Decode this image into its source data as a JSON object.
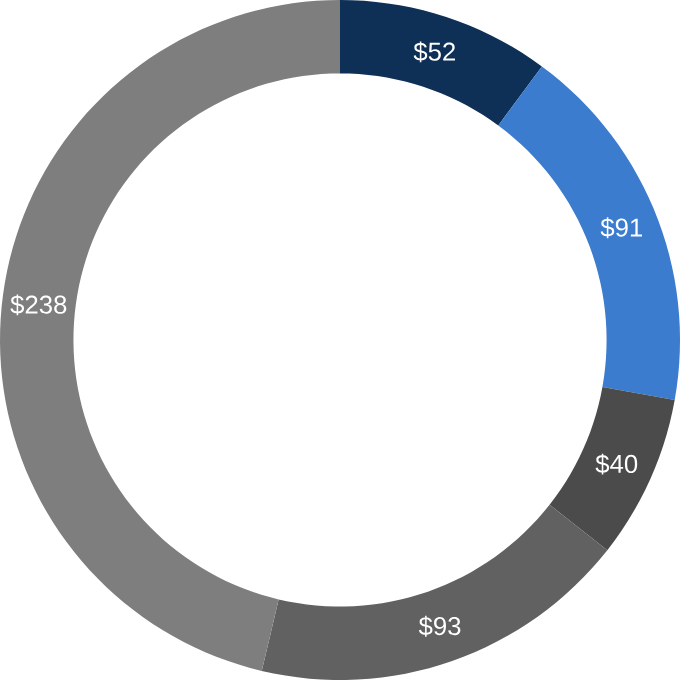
{
  "chart_data": {
    "type": "donut",
    "categories": [
      null,
      null,
      null,
      null,
      null
    ],
    "values": [
      52,
      91,
      40,
      93,
      238
    ],
    "colors": [
      "#0e2f56",
      "#3b7ccf",
      "#4b4b4b",
      "#616161",
      "#7e7e7e"
    ],
    "value_labels": [
      "$52",
      "$91",
      "$40",
      "$93",
      "$238"
    ]
  }
}
